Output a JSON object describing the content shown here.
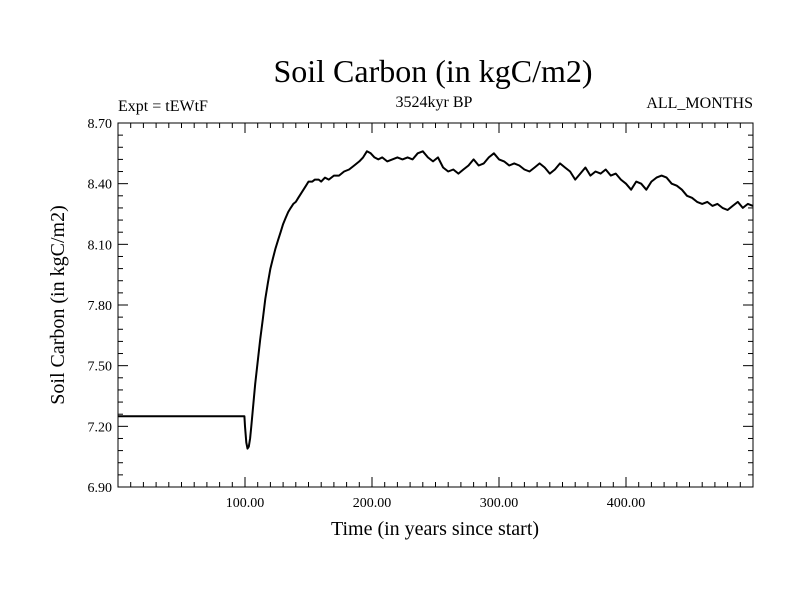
{
  "chart_data": {
    "type": "line",
    "title": "Soil Carbon (in kgC/m2)",
    "subtitle_left": "Expt = tEWtF",
    "subtitle_center": "3524kyr BP",
    "subtitle_right": "ALL_MONTHS",
    "xlabel": "Time (in years since start)",
    "ylabel": "Soil Carbon (in kgC/m2)",
    "xlim": [
      0,
      500
    ],
    "ylim": [
      6.9,
      8.7
    ],
    "x_ticks": [
      100,
      200,
      300,
      400
    ],
    "x_tick_labels": [
      "100.00",
      "200.00",
      "300.00",
      "400.00"
    ],
    "y_ticks": [
      6.9,
      7.2,
      7.5,
      7.8,
      8.1,
      8.4,
      8.7
    ],
    "y_tick_labels": [
      "6.90",
      "7.20",
      "7.50",
      "7.80",
      "8.10",
      "8.40",
      "8.70"
    ],
    "series": [
      {
        "name": "Soil Carbon",
        "x": [
          0,
          99.5,
          100,
          101,
          102,
          103,
          104,
          105,
          106,
          107,
          108,
          110,
          112,
          114,
          116,
          118,
          120,
          122,
          124,
          126,
          128,
          130,
          132,
          134,
          136,
          138,
          140,
          142,
          145,
          148,
          150,
          153,
          155,
          158,
          160,
          163,
          166,
          170,
          174,
          178,
          182,
          186,
          190,
          193,
          196,
          199,
          202,
          205,
          208,
          212,
          216,
          220,
          224,
          228,
          232,
          236,
          240,
          244,
          248,
          252,
          256,
          260,
          264,
          268,
          272,
          276,
          280,
          284,
          288,
          292,
          296,
          300,
          304,
          308,
          312,
          316,
          320,
          324,
          328,
          332,
          336,
          340,
          344,
          348,
          352,
          356,
          360,
          364,
          368,
          372,
          376,
          380,
          384,
          388,
          392,
          396,
          400,
          404,
          408,
          412,
          416,
          420,
          424,
          428,
          432,
          436,
          440,
          444,
          448,
          452,
          456,
          460,
          464,
          468,
          472,
          476,
          480,
          484,
          488,
          492,
          496,
          500
        ],
        "y": [
          7.25,
          7.25,
          7.2,
          7.12,
          7.09,
          7.1,
          7.14,
          7.2,
          7.27,
          7.34,
          7.41,
          7.52,
          7.63,
          7.73,
          7.83,
          7.91,
          7.98,
          8.03,
          8.08,
          8.12,
          8.16,
          8.2,
          8.23,
          8.26,
          8.28,
          8.3,
          8.31,
          8.33,
          8.36,
          8.39,
          8.41,
          8.41,
          8.42,
          8.42,
          8.41,
          8.43,
          8.42,
          8.44,
          8.44,
          8.46,
          8.47,
          8.49,
          8.51,
          8.53,
          8.56,
          8.55,
          8.53,
          8.52,
          8.53,
          8.51,
          8.52,
          8.53,
          8.52,
          8.53,
          8.52,
          8.55,
          8.56,
          8.53,
          8.51,
          8.53,
          8.48,
          8.46,
          8.47,
          8.45,
          8.47,
          8.49,
          8.52,
          8.49,
          8.5,
          8.53,
          8.55,
          8.52,
          8.51,
          8.49,
          8.5,
          8.49,
          8.47,
          8.46,
          8.48,
          8.5,
          8.48,
          8.45,
          8.47,
          8.5,
          8.48,
          8.46,
          8.42,
          8.45,
          8.48,
          8.44,
          8.46,
          8.45,
          8.47,
          8.44,
          8.45,
          8.42,
          8.4,
          8.37,
          8.41,
          8.4,
          8.37,
          8.41,
          8.43,
          8.44,
          8.43,
          8.4,
          8.39,
          8.37,
          8.34,
          8.33,
          8.31,
          8.3,
          8.31,
          8.29,
          8.3,
          8.28,
          8.27,
          8.29,
          8.31,
          8.28,
          8.3,
          8.29
        ]
      }
    ]
  }
}
